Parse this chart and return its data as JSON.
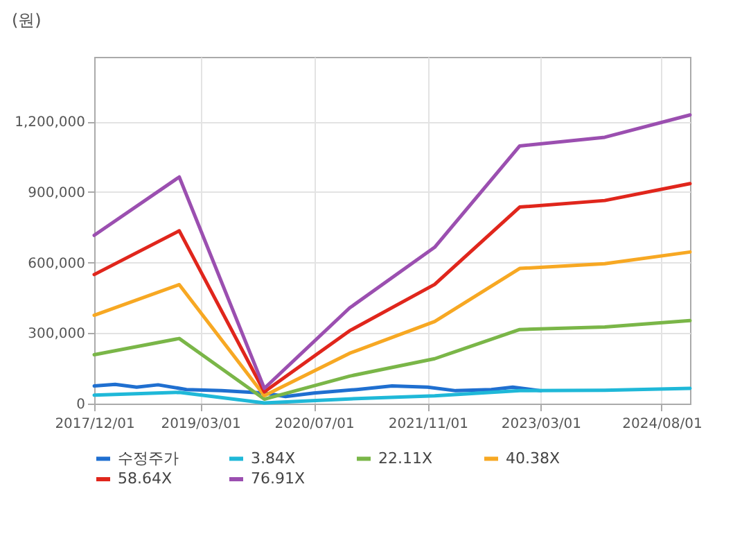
{
  "chart_data": {
    "type": "line",
    "ylabel": "(원)",
    "series": [
      {
        "name": "수정주가",
        "color": "#1f6fd0",
        "x": [
          "2017-12-01",
          "2018-03-01",
          "2018-06-01",
          "2018-09-01",
          "2019-01-01",
          "2019-06-01",
          "2019-12-01",
          "2020-03-01",
          "2020-07-01",
          "2021-01-01",
          "2021-06-01",
          "2021-11-01",
          "2022-03-01",
          "2022-08-01",
          "2022-11-01",
          "2023-03-01"
        ],
        "values": [
          75000,
          82000,
          70000,
          80000,
          60000,
          55000,
          45000,
          30000,
          45000,
          60000,
          75000,
          70000,
          55000,
          60000,
          70000,
          55000
        ]
      },
      {
        "name": "3.84X",
        "color": "#1fb8d8",
        "x": [
          "2017-12-01",
          "2018-12-01",
          "2019-12-01",
          "2020-12-01",
          "2021-12-01",
          "2022-12-01",
          "2023-12-01",
          "2024-12-01"
        ],
        "values": [
          36000,
          48000,
          3000,
          20000,
          33000,
          55000,
          57000,
          65000
        ]
      },
      {
        "name": "22.11X",
        "color": "#7ab648",
        "x": [
          "2017-12-01",
          "2018-12-01",
          "2019-12-01",
          "2020-12-01",
          "2021-12-01",
          "2022-12-01",
          "2023-12-01",
          "2024-12-01"
        ],
        "values": [
          208000,
          277000,
          19000,
          117000,
          191000,
          315000,
          326000,
          353000
        ]
      },
      {
        "name": "40.38X",
        "color": "#f7a823",
        "x": [
          "2017-12-01",
          "2018-12-01",
          "2019-12-01",
          "2020-12-01",
          "2021-12-01",
          "2022-12-01",
          "2023-12-01",
          "2024-12-01"
        ],
        "values": [
          376000,
          506000,
          34000,
          214000,
          349000,
          575000,
          595000,
          645000
        ]
      },
      {
        "name": "58.64X",
        "color": "#e0261c",
        "x": [
          "2017-12-01",
          "2018-12-01",
          "2019-12-01",
          "2020-12-01",
          "2021-12-01",
          "2022-12-01",
          "2023-12-01",
          "2024-12-01"
        ],
        "values": [
          549000,
          735000,
          50000,
          310000,
          507000,
          836000,
          864000,
          936000
        ]
      },
      {
        "name": "76.91X",
        "color": "#9b4fb0",
        "x": [
          "2017-12-01",
          "2018-12-01",
          "2019-12-01",
          "2020-12-01",
          "2021-12-01",
          "2022-12-01",
          "2023-12-01",
          "2024-12-01"
        ],
        "values": [
          716000,
          964000,
          65000,
          407000,
          665000,
          1096000,
          1133000,
          1228000
        ]
      }
    ],
    "xlim": [
      "2017-12-01",
      "2024-12-01"
    ],
    "xticks": [
      {
        "value": "2017-12-01",
        "label": "2017/12/01"
      },
      {
        "value": "2019-03-01",
        "label": "2019/03/01"
      },
      {
        "value": "2020-07-01",
        "label": "2020/07/01"
      },
      {
        "value": "2021-11-01",
        "label": "2021/11/01"
      },
      {
        "value": "2023-03-01",
        "label": "2023/03/01"
      },
      {
        "value": "2024-08-01",
        "label": "2024/08/01"
      }
    ],
    "ylim": [
      0,
      1475000
    ],
    "yticks": [
      0,
      {
        "value": 300000,
        "label": "300,000"
      },
      {
        "value": 600000,
        "label": "600,000"
      },
      {
        "value": 900000,
        "label": "900,000"
      },
      {
        "value": 1200000,
        "label": "1,200,000"
      }
    ],
    "grid": true,
    "legend": "bottom",
    "line_style": "solid"
  }
}
